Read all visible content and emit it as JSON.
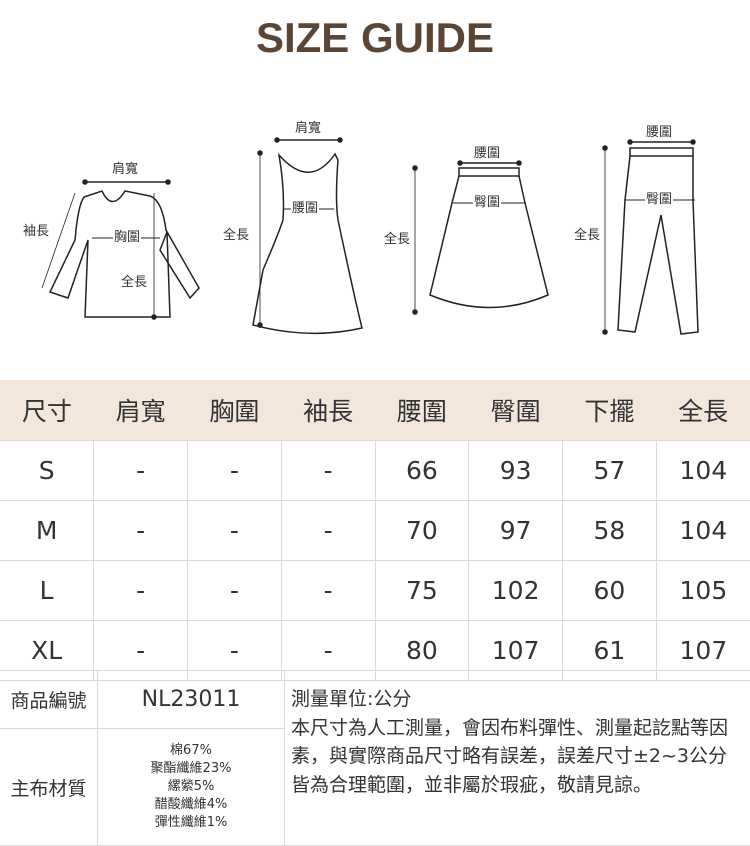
{
  "title": "SIZE GUIDE",
  "diagrams": {
    "top": {
      "shoulder": "肩寬",
      "sleeve": "袖長",
      "chest": "胸圍",
      "length": "全長"
    },
    "dress": {
      "shoulder": "肩寬",
      "waist": "腰圍",
      "length": "全長"
    },
    "skirt": {
      "waist": "腰圍",
      "hip": "臀圍",
      "length": "全長"
    },
    "pants": {
      "waist": "腰圍",
      "hip": "臀圍",
      "length": "全長"
    }
  },
  "size_table": {
    "headers": [
      "尺寸",
      "肩寬",
      "胸圍",
      "袖長",
      "腰圍",
      "臀圍",
      "下擺",
      "全長"
    ],
    "rows": [
      [
        "S",
        "-",
        "-",
        "-",
        "66",
        "93",
        "57",
        "104"
      ],
      [
        "M",
        "-",
        "-",
        "-",
        "70",
        "97",
        "58",
        "104"
      ],
      [
        "L",
        "-",
        "-",
        "-",
        "75",
        "102",
        "60",
        "105"
      ],
      [
        "XL",
        "-",
        "-",
        "-",
        "80",
        "107",
        "61",
        "107"
      ]
    ]
  },
  "info": {
    "code_label": "商品編號",
    "code_value": "NL23011",
    "material_label": "主布材質",
    "materials": [
      "棉67%",
      "聚酯纖維23%",
      "縲縈5%",
      "醋酸纖維4%",
      "彈性纖維1%"
    ],
    "unit": "測量單位:公分",
    "note": "本尺寸為人工測量，會因布料彈性、測量起訖點等因素，與實際商品尺寸略有誤差，誤差尺寸±2~3公分皆為合理範圍，並非屬於瑕疵，敬請見諒。"
  }
}
